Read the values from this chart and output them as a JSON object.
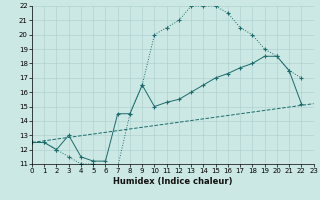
{
  "xlabel": "Humidex (Indice chaleur)",
  "xlim": [
    0,
    23
  ],
  "ylim": [
    11,
    22
  ],
  "yticks": [
    11,
    12,
    13,
    14,
    15,
    16,
    17,
    18,
    19,
    20,
    21,
    22
  ],
  "xticks": [
    0,
    1,
    2,
    3,
    4,
    5,
    6,
    7,
    8,
    9,
    10,
    11,
    12,
    13,
    14,
    15,
    16,
    17,
    18,
    19,
    20,
    21,
    22,
    23
  ],
  "bg_color": "#cce8e4",
  "line_color": "#1a6b6b",
  "line1_x": [
    0,
    1,
    2,
    3,
    4,
    5,
    6,
    7,
    8,
    9,
    10,
    11,
    12,
    13,
    14,
    15,
    16,
    17,
    18,
    19,
    20,
    21,
    22
  ],
  "line1_y": [
    12.5,
    12.5,
    12.0,
    11.5,
    11.0,
    11.0,
    10.8,
    10.8,
    14.5,
    16.5,
    20.0,
    20.5,
    21.0,
    22.0,
    22.0,
    22.0,
    21.5,
    20.5,
    20.0,
    19.0,
    18.5,
    17.5,
    17.0
  ],
  "line2_x": [
    0,
    1,
    2,
    3,
    4,
    5,
    6,
    7,
    8,
    9,
    10,
    11,
    12,
    13,
    14,
    15,
    16,
    17,
    18,
    19,
    20,
    21,
    22
  ],
  "line2_y": [
    12.5,
    12.5,
    12.0,
    13.0,
    11.5,
    11.2,
    11.2,
    14.5,
    14.5,
    16.5,
    15.0,
    15.3,
    15.5,
    16.0,
    16.5,
    17.0,
    17.3,
    17.7,
    18.0,
    18.5,
    18.5,
    17.5,
    15.2
  ],
  "line3_x": [
    0,
    23
  ],
  "line3_y": [
    12.5,
    15.2
  ]
}
